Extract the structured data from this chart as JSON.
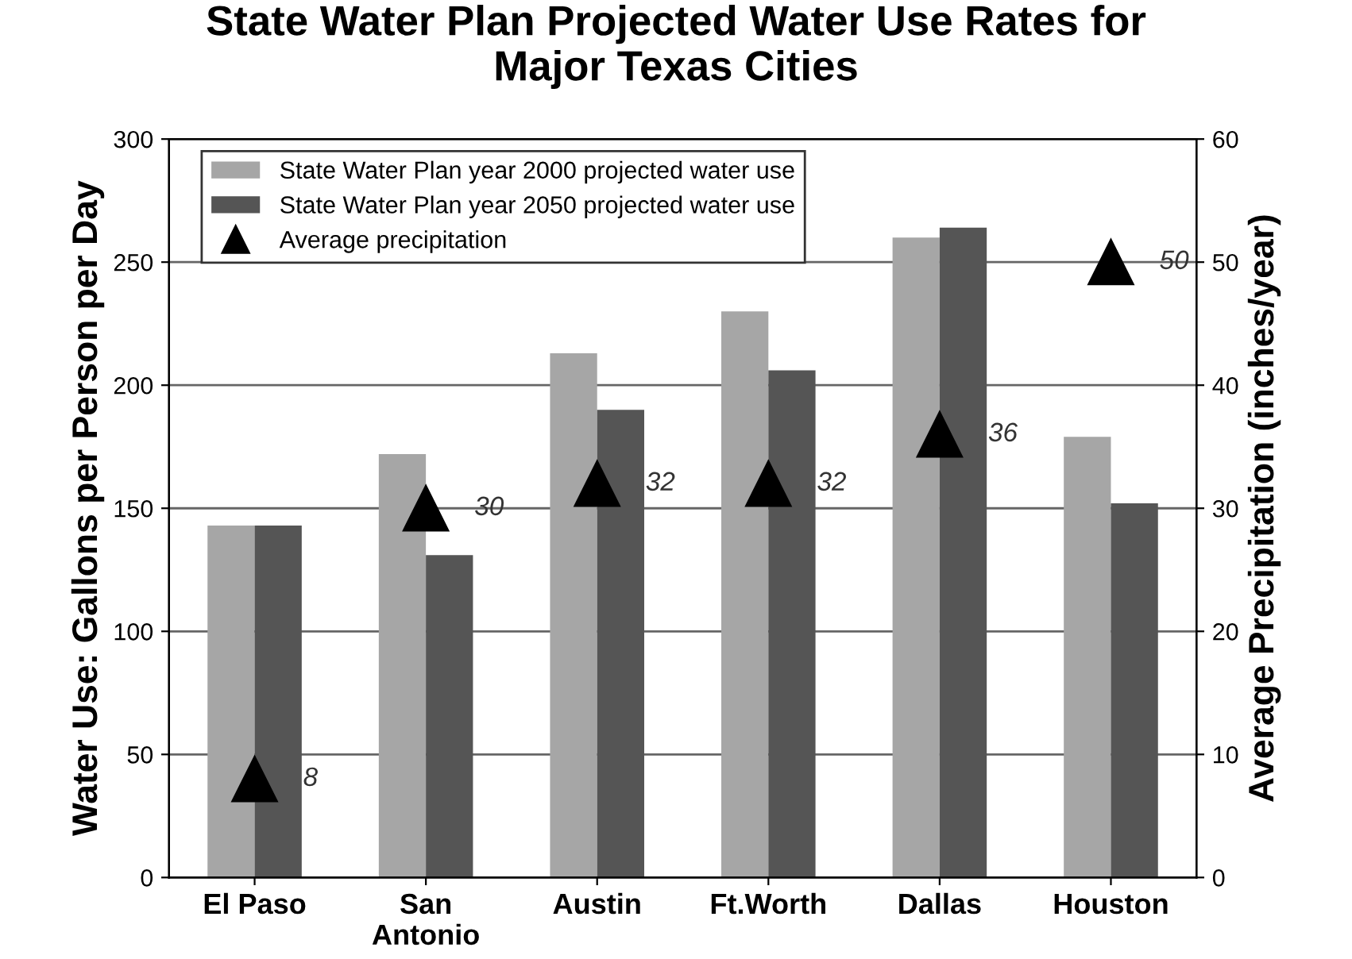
{
  "chart_data": {
    "type": "bar",
    "title": "State Water Plan Projected Water Use Rates for\nMajor Texas Cities",
    "ylabel": "Water Use: Gallons per Person per Day",
    "y2label": "Average Precipitation (inches/year)",
    "categories": [
      "El Paso",
      "San\nAntonio",
      "Austin",
      "Ft.Worth",
      "Dallas",
      "Houston"
    ],
    "series": [
      {
        "name": "State Water Plan year 2000 projected water use",
        "color": "#a6a6a6",
        "values": [
          143,
          172,
          213,
          230,
          260,
          179
        ]
      },
      {
        "name": "State Water Plan year 2050 projected water use",
        "color": "#555555",
        "values": [
          143,
          131,
          190,
          206,
          264,
          152
        ]
      },
      {
        "name": "Average precipitation",
        "type": "scatter",
        "axis": "y2",
        "color": "#000000",
        "marker": "triangle",
        "values": [
          8,
          30,
          32,
          32,
          36,
          50
        ],
        "data_labels": true
      }
    ],
    "ylim": [
      0,
      300
    ],
    "yticks": [
      0,
      50,
      100,
      150,
      200,
      250,
      300
    ],
    "y2lim": [
      0,
      60
    ],
    "y2ticks": [
      0,
      10,
      20,
      30,
      40,
      50,
      60
    ],
    "grid": "y",
    "legend": "top left"
  }
}
